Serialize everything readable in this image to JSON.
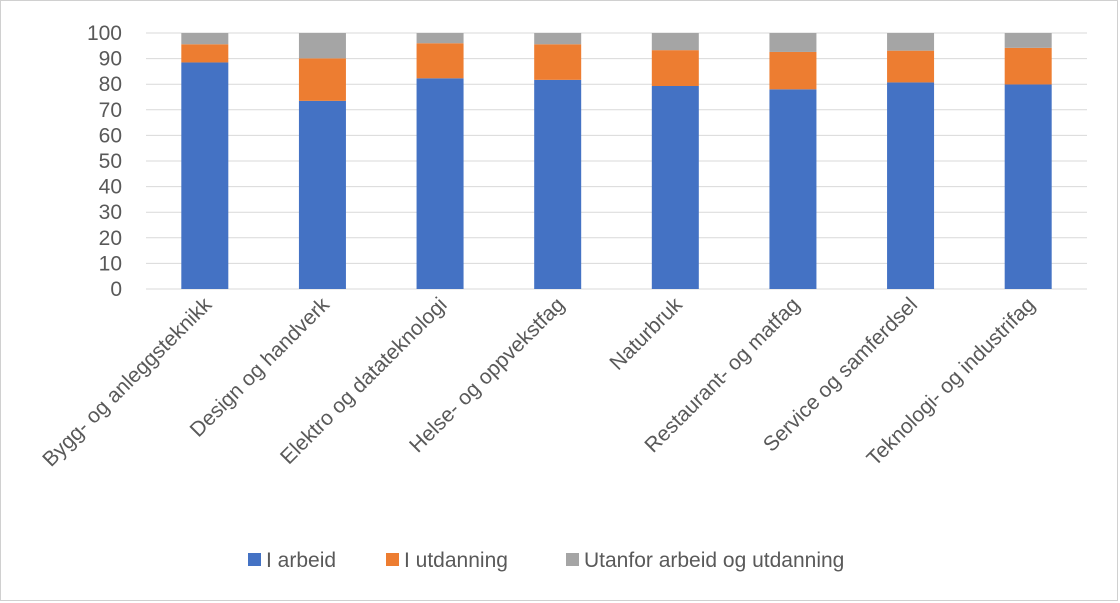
{
  "chart_data": {
    "type": "bar",
    "stacked": true,
    "categories": [
      "Bygg- og anleggsteknikk",
      "Design og handverk",
      "Elektro og datateknologi",
      "Helse- og oppvekstfag",
      "Naturbruk",
      "Restaurant- og matfag",
      "Service og samferdsel",
      "Teknologi- og industrifag"
    ],
    "series": [
      {
        "name": "I arbeid",
        "color": "#4472c4",
        "values": [
          88.5,
          73.5,
          82.3,
          81.7,
          79.3,
          78.0,
          80.7,
          79.9
        ]
      },
      {
        "name": "I utdanning",
        "color": "#ed7d31",
        "values": [
          7.1,
          16.6,
          13.7,
          13.9,
          14.0,
          14.6,
          12.4,
          14.3
        ]
      },
      {
        "name": "Utanfor arbeid og utdanning",
        "color": "#a5a5a5",
        "values": [
          4.4,
          9.9,
          4.0,
          4.4,
          6.7,
          7.4,
          6.9,
          5.8
        ]
      }
    ],
    "ylim": [
      0,
      100
    ],
    "yticks": [
      "0",
      "10",
      "20",
      "30",
      "40",
      "50",
      "60",
      "70",
      "80",
      "90",
      "100"
    ],
    "grid": true,
    "legend_position": "bottom"
  }
}
